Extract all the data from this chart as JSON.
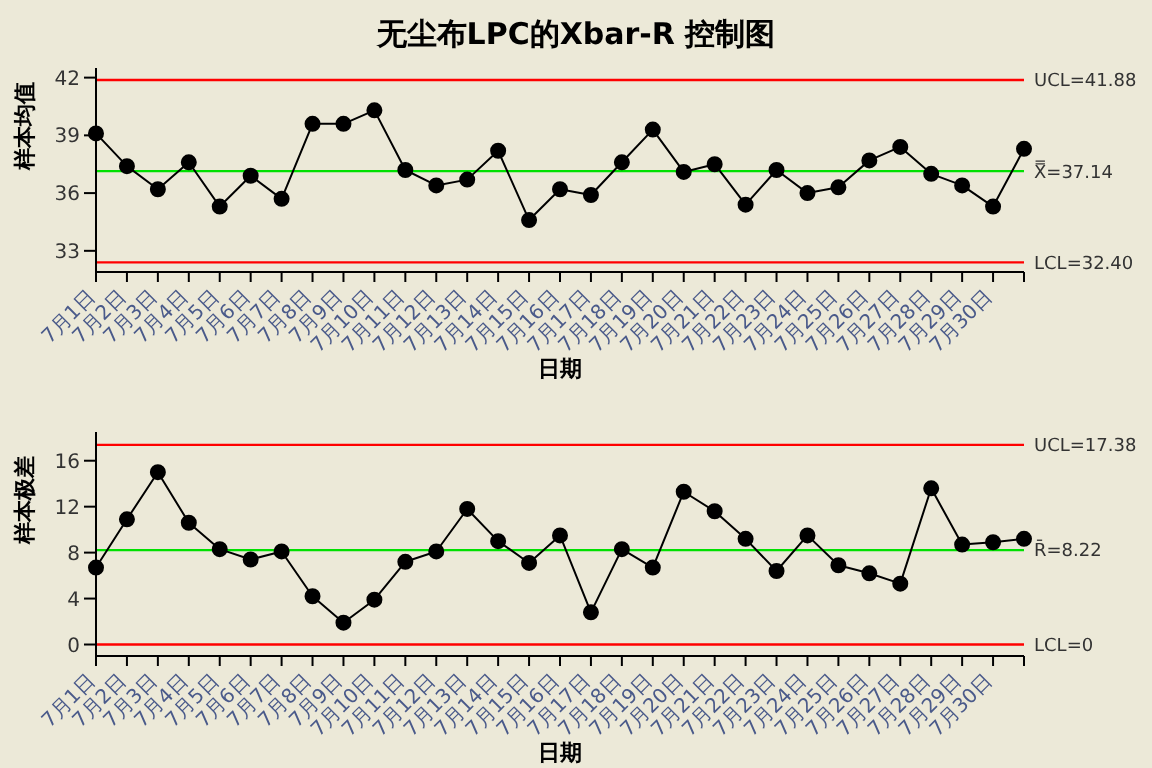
{
  "chart_data": [
    {
      "type": "line",
      "title": "无尘布LPC的Xbar-R 控制图",
      "xlabel": "日期",
      "ylabel": "样本均值",
      "categories": [
        "7月1日",
        "7月2日",
        "7月3日",
        "7月4日",
        "7月5日",
        "7月6日",
        "7月7日",
        "7月8日",
        "7月9日",
        "7月10日",
        "7月11日",
        "7月12日",
        "7月13日",
        "7月14日",
        "7月15日",
        "7月16日",
        "7月17日",
        "7月18日",
        "7月19日",
        "7月20日",
        "7月21日",
        "7月22日",
        "7月23日",
        "7月24日",
        "7月25日",
        "7月26日",
        "7月27日",
        "7月28日",
        "7月29日",
        "7月30日",
        null
      ],
      "series": [
        {
          "color": "#000000",
          "values": [
            39.1,
            37.4,
            36.2,
            37.6,
            35.3,
            36.9,
            35.7,
            39.6,
            39.6,
            40.3,
            37.2,
            36.4,
            36.7,
            38.2,
            34.6,
            36.2,
            35.9,
            37.6,
            39.3,
            37.1,
            37.5,
            35.4,
            37.2,
            36.0,
            36.3,
            37.7,
            38.4,
            37.0,
            36.4,
            35.3,
            38.3
          ]
        }
      ],
      "ylim": [
        31.9,
        42.5
      ],
      "yticks": [
        33,
        36,
        39,
        42
      ],
      "grid": false,
      "marker": "circle",
      "line_style": "solid",
      "ref_lines": [
        {
          "axis": "y",
          "value": 41.88,
          "label": "UCL=41.88",
          "color": "#ff0000"
        },
        {
          "axis": "y",
          "value": 37.14,
          "label": "X̿=37.14",
          "color": "#00e000"
        },
        {
          "axis": "y",
          "value": 32.4,
          "label": "LCL=32.40",
          "color": "#ff0000"
        }
      ]
    },
    {
      "type": "line",
      "xlabel": "日期",
      "ylabel": "样本极差",
      "categories": [
        "7月1日",
        "7月2日",
        "7月3日",
        "7月4日",
        "7月5日",
        "7月6日",
        "7月7日",
        "7月8日",
        "7月9日",
        "7月10日",
        "7月11日",
        "7月12日",
        "7月13日",
        "7月14日",
        "7月15日",
        "7月16日",
        "7月17日",
        "7月18日",
        "7月19日",
        "7月20日",
        "7月21日",
        "7月22日",
        "7月23日",
        "7月24日",
        "7月25日",
        "7月26日",
        "7月27日",
        "7月28日",
        "7月29日",
        "7月30日",
        null
      ],
      "series": [
        {
          "color": "#000000",
          "values": [
            6.7,
            10.9,
            15.0,
            10.6,
            8.3,
            7.4,
            8.1,
            4.2,
            1.9,
            3.9,
            7.2,
            8.1,
            11.8,
            9.0,
            7.1,
            9.5,
            2.8,
            8.3,
            6.7,
            13.3,
            11.6,
            9.2,
            6.4,
            9.5,
            6.9,
            6.2,
            5.3,
            13.6,
            8.7,
            8.9,
            9.2
          ]
        }
      ],
      "ylim": [
        -1,
        18.5
      ],
      "yticks": [
        0,
        4,
        8,
        12,
        16
      ],
      "grid": false,
      "marker": "circle",
      "line_style": "solid",
      "ref_lines": [
        {
          "axis": "y",
          "value": 17.38,
          "label": "UCL=17.38",
          "color": "#ff0000"
        },
        {
          "axis": "y",
          "value": 8.22,
          "label": "R̄=8.22",
          "color": "#00e000"
        },
        {
          "axis": "y",
          "value": 0,
          "label": "LCL=0",
          "color": "#ff0000"
        }
      ]
    }
  ]
}
